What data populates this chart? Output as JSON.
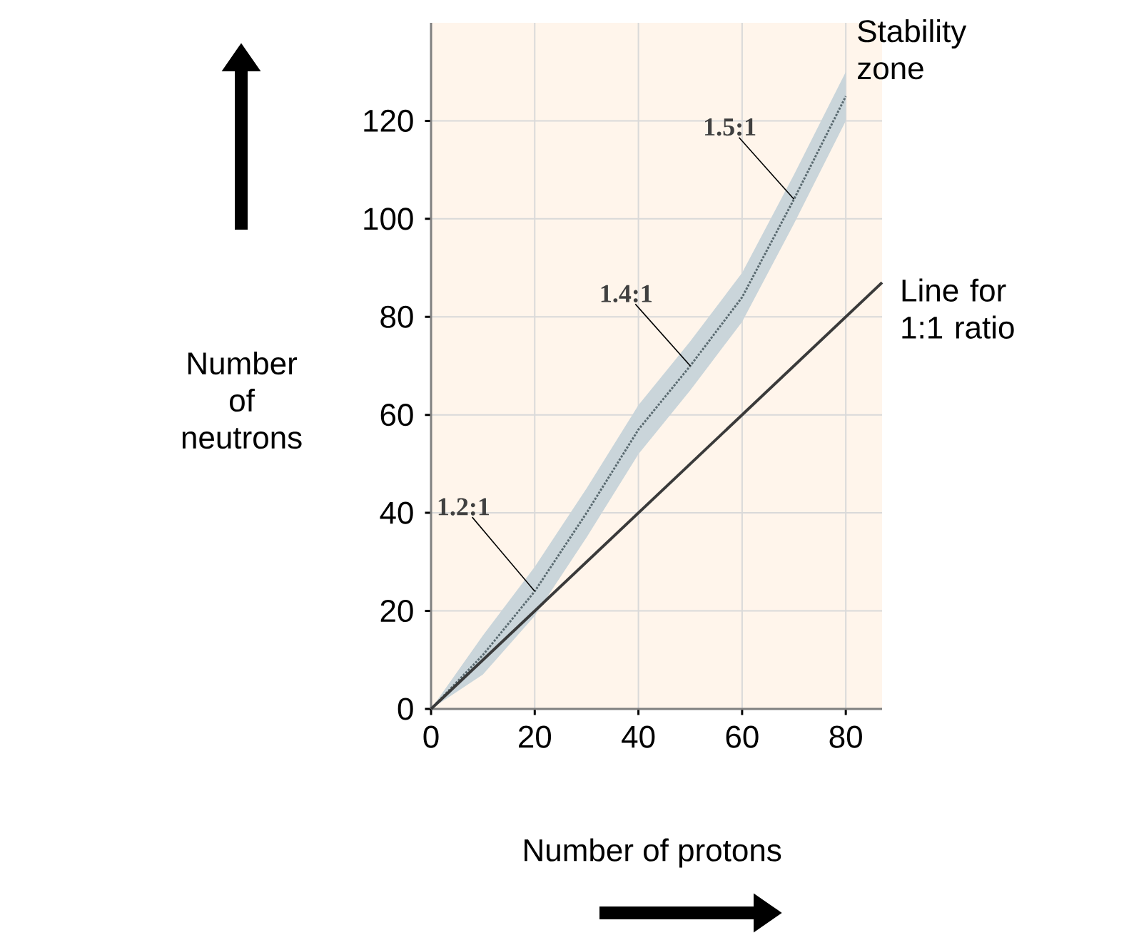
{
  "chart_data": {
    "type": "line",
    "xlabel": "Number of protons",
    "ylabel": "Number of neutrons",
    "xlim": [
      0,
      87
    ],
    "ylim": [
      0,
      140
    ],
    "xticks": [
      0,
      20,
      40,
      60,
      80
    ],
    "yticks": [
      0,
      20,
      40,
      60,
      80,
      100,
      120
    ],
    "grid": true,
    "series": [
      {
        "name": "Stability zone",
        "color": "#5a6a70",
        "line_style": "dotted",
        "x": [
          0,
          10,
          20,
          30,
          40,
          50,
          60,
          70,
          80
        ],
        "values": [
          0,
          11,
          24,
          40,
          57,
          70,
          84,
          104,
          125
        ],
        "lower": [
          0,
          7,
          19,
          35,
          52,
          65,
          79,
          99,
          120
        ],
        "upper": [
          0,
          15,
          29,
          45,
          62,
          75,
          89,
          109,
          130
        ]
      },
      {
        "name": "Line for 1:1 ratio",
        "color": "#3a3a3a",
        "line_style": "solid",
        "x": [
          0,
          87
        ],
        "values": [
          0,
          87
        ]
      }
    ],
    "annotations": [
      {
        "text": "1.2:1",
        "x": 20,
        "y": 24
      },
      {
        "text": "1.4:1",
        "x": 50,
        "y": 70
      },
      {
        "text": "1.5:1",
        "x": 70,
        "y": 104
      }
    ]
  }
}
